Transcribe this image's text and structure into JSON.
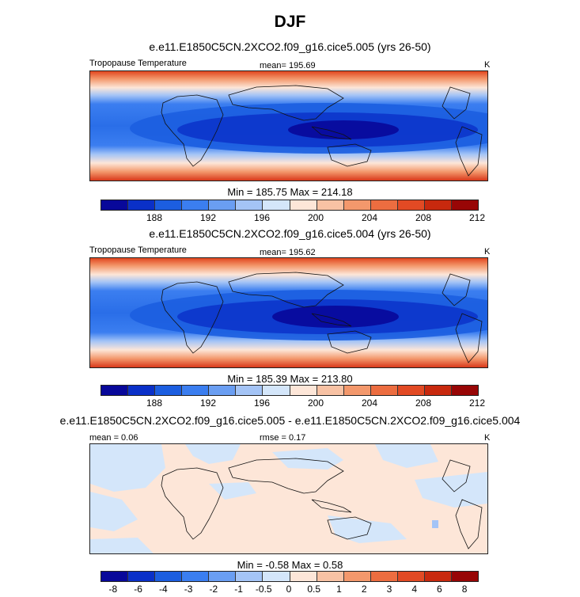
{
  "season": "DJF",
  "panels": [
    {
      "title": "e.e11.E1850C5CN.2XCO2.f09_g16.cice5.005 (yrs 26-50)",
      "left_label": "Tropopause Temperature",
      "center_label": "mean= 195.69",
      "right_label": "K",
      "minmax": "Min = 185.75 Max = 214.18",
      "cbar_labels": [
        "188",
        "192",
        "196",
        "200",
        "204",
        "208",
        "212"
      ]
    },
    {
      "title": "e.e11.E1850C5CN.2XCO2.f09_g16.cice5.004 (yrs 26-50)",
      "left_label": "Tropopause Temperature",
      "center_label": "mean= 195.62",
      "right_label": "K",
      "minmax": "Min = 185.39 Max = 213.80",
      "cbar_labels": [
        "188",
        "192",
        "196",
        "200",
        "204",
        "208",
        "212"
      ]
    },
    {
      "title": "e.e11.E1850C5CN.2XCO2.f09_g16.cice5.005 - e.e11.E1850C5CN.2XCO2.f09_g16.cice5.004",
      "left_label": "mean =   0.06",
      "center_label": "rmse =   0.17",
      "right_label": "K",
      "minmax": "Min =  -0.58 Max =   0.58",
      "cbar_labels": [
        "-8",
        "-6",
        "-4",
        "-3",
        "-2",
        "-1",
        "-0.5",
        "0",
        "0.5",
        "1",
        "2",
        "3",
        "4",
        "6",
        "8"
      ]
    }
  ],
  "colors": {
    "cbar": [
      "#08089a",
      "#0a30c8",
      "#1c5ee0",
      "#3b7ef0",
      "#6a9ef2",
      "#a4c4f6",
      "#d4e6fa",
      "#fde6d8",
      "#f8c2a4",
      "#f3986c",
      "#ec6d40",
      "#e24a24",
      "#c8290e",
      "#980606"
    ],
    "diff_pos": "#fde6d8",
    "diff_neg": "#d4e6fa",
    "diff_mid": "#a4c4f6"
  }
}
